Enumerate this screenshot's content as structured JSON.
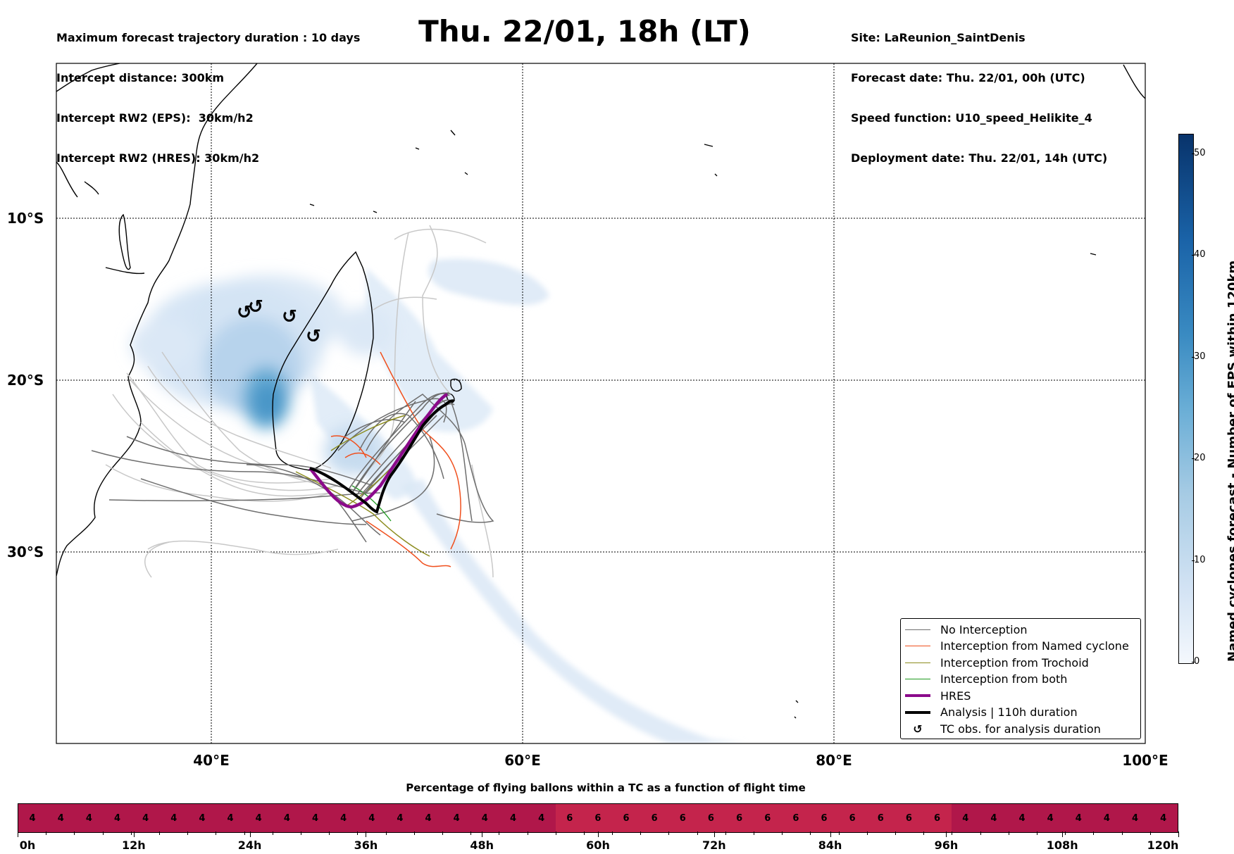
{
  "header": {
    "left_lines": [
      "Maximum forecast trajectory duration : 10 days",
      "Intercept distance: 300km",
      "Intercept RW2 (EPS):  30km/h2",
      "Intercept RW2 (HRES): 30km/h2"
    ],
    "title": "Thu. 22/01, 18h (LT)",
    "right_lines": [
      "Site: LaReunion_SaintDenis",
      "Forecast date: Thu. 22/01, 00h (UTC)",
      "Speed function: U10_speed_Helikite_4",
      "Deployment date: Thu. 22/01, 14h (UTC)"
    ]
  },
  "map": {
    "lat_labels": [
      "10°S",
      "20°S",
      "30°S"
    ],
    "lon_labels": [
      "40°E",
      "60°E",
      "80°E",
      "100°E"
    ],
    "colors": {
      "no_interception": "#6e6e6e",
      "named_cyclone": "#f0501e",
      "trochoid": "#8c8c1e",
      "both": "#1e9a1e",
      "hres": "#8b0a8b",
      "analysis": "#000000",
      "old_traj": "#c8c8c8"
    },
    "tc_symbol": "↺"
  },
  "legend": {
    "items": [
      {
        "label": "No Interception",
        "kind": "line",
        "color": "#6e6e6e",
        "width": 1.5
      },
      {
        "label": "Interception from Named cyclone",
        "kind": "line",
        "color": "#f0501e",
        "width": 1.5
      },
      {
        "label": "Interception from Trochoid",
        "kind": "line",
        "color": "#8c8c1e",
        "width": 1.5
      },
      {
        "label": "Interception from both",
        "kind": "line",
        "color": "#1e9a1e",
        "width": 1.5
      },
      {
        "label": "HRES",
        "kind": "line",
        "color": "#8b0a8b",
        "width": 4
      },
      {
        "label": "Analysis | 110h duration",
        "kind": "line",
        "color": "#000000",
        "width": 4
      },
      {
        "label": "TC obs. for analysis duration",
        "kind": "symbol",
        "symbol": "↺"
      }
    ]
  },
  "colorbar": {
    "label": "Named cyclones forecast - Number of EPS within 120km",
    "ticks": [
      "0",
      "10",
      "20",
      "30",
      "40",
      "50"
    ]
  },
  "bottom_bar": {
    "title": "Percentage of flying ballons within a TC as a function of flight time",
    "values": [
      "4",
      "4",
      "4",
      "4",
      "4",
      "4",
      "4",
      "4",
      "4",
      "4",
      "4",
      "4",
      "4",
      "4",
      "4",
      "4",
      "4",
      "4",
      "4",
      "6",
      "6",
      "6",
      "6",
      "6",
      "6",
      "6",
      "6",
      "6",
      "6",
      "6",
      "6",
      "6",
      "6",
      "4",
      "4",
      "4",
      "4",
      "4",
      "4",
      "4",
      "4"
    ],
    "colors": {
      "4": "#b0174a",
      "6": "#c4244c"
    },
    "time_labels": [
      "0h",
      "12h",
      "24h",
      "36h",
      "48h",
      "60h",
      "72h",
      "84h",
      "96h",
      "108h",
      "120h"
    ]
  }
}
